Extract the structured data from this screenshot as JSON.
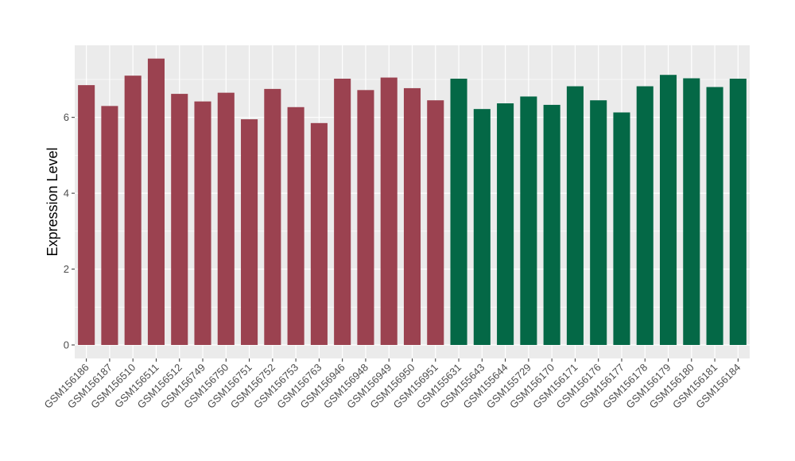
{
  "chart_data": {
    "type": "bar",
    "title": "",
    "xlabel": "",
    "ylabel": "Expression Level",
    "ylim": [
      0,
      7.9
    ],
    "yticks": [
      0,
      2,
      4,
      6
    ],
    "grid": true,
    "legend": "none",
    "colors": {
      "group1": "#9b4250",
      "group2": "#046846",
      "panel": "#ebebeb",
      "grid": "#ffffff"
    },
    "categories": [
      "GSM156186",
      "GSM156187",
      "GSM156510",
      "GSM156511",
      "GSM156512",
      "GSM156749",
      "GSM156750",
      "GSM156751",
      "GSM156752",
      "GSM156753",
      "GSM156763",
      "GSM156946",
      "GSM156948",
      "GSM156949",
      "GSM156950",
      "GSM156951",
      "GSM155631",
      "GSM155643",
      "GSM155644",
      "GSM155729",
      "GSM156170",
      "GSM156171",
      "GSM156176",
      "GSM156177",
      "GSM156178",
      "GSM156179",
      "GSM156180",
      "GSM156181",
      "GSM156184"
    ],
    "values": [
      6.85,
      6.3,
      7.1,
      7.55,
      6.62,
      6.42,
      6.65,
      5.95,
      6.75,
      6.27,
      5.85,
      7.02,
      6.72,
      7.05,
      6.77,
      6.45,
      7.02,
      6.22,
      6.37,
      6.55,
      6.33,
      6.82,
      6.45,
      6.13,
      6.82,
      7.12,
      7.03,
      6.8,
      7.02
    ],
    "groups": [
      1,
      1,
      1,
      1,
      1,
      1,
      1,
      1,
      1,
      1,
      1,
      1,
      1,
      1,
      1,
      1,
      2,
      2,
      2,
      2,
      2,
      2,
      2,
      2,
      2,
      2,
      2,
      2,
      2
    ]
  }
}
